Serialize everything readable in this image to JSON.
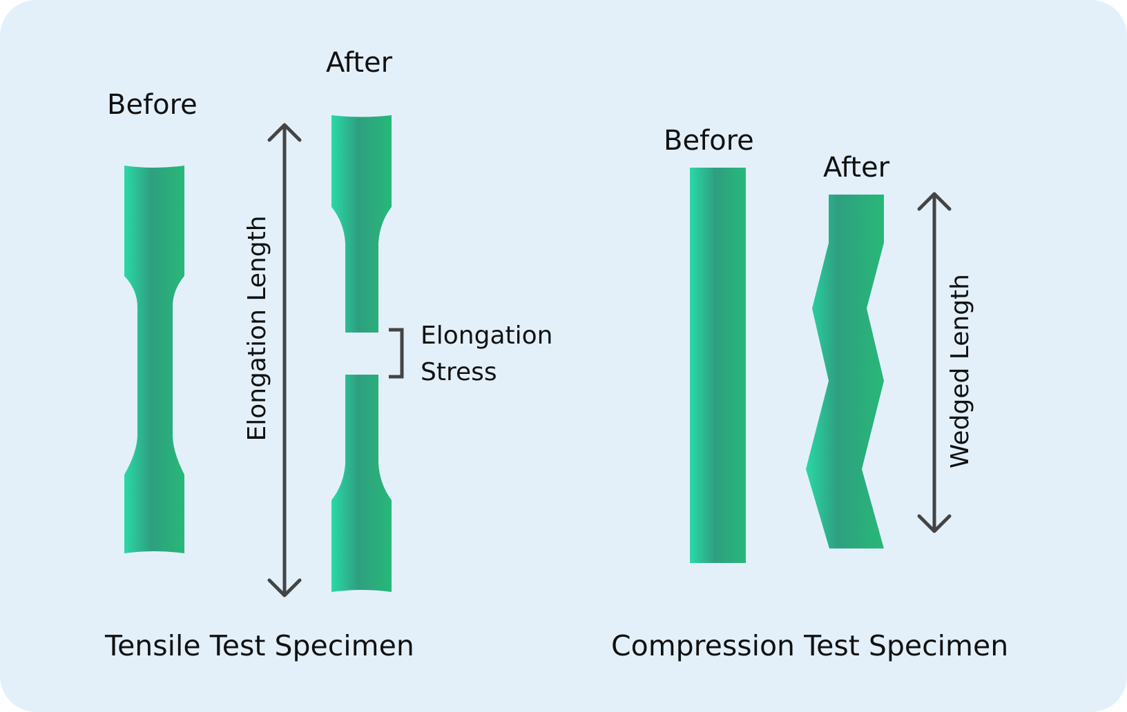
{
  "tensile": {
    "before_label": "Before",
    "after_label": "After",
    "elongation_length_label": "Elongation Length",
    "stress_label_line1": "Elongation",
    "stress_label_line2": "Stress",
    "caption": "Tensile Test Specimen"
  },
  "compression": {
    "before_label": "Before",
    "after_label": "After",
    "wedged_length_label": "Wedged Length",
    "caption": "Compression Test Specimen"
  },
  "colors": {
    "background": "#E3F0FA",
    "specimen_light": "#2AD9A6",
    "specimen_mid": "#2E9F80",
    "specimen_dark": "#28B878",
    "arrow": "#444444",
    "text": "#111111"
  }
}
